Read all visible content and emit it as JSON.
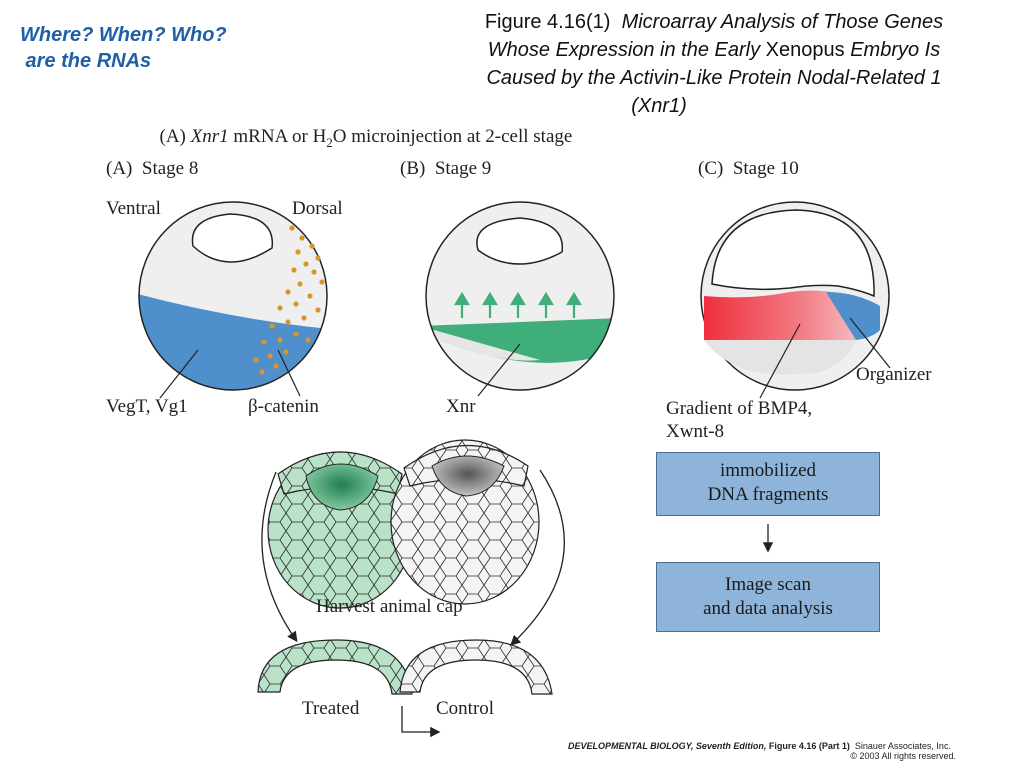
{
  "slide": {
    "heading_lines": [
      "Where? When? Who?",
      " are the RNAs"
    ],
    "figure_number": "Figure 4.16(1)",
    "figure_title_lines": [
      "Microarray Analysis of Those Genes",
      "Whose Expression in the Early ",
      "Xenopus",
      " Embryo Is",
      "Caused by the Activin-Like Protein Nodal-Related 1",
      "(Xnr1)"
    ]
  },
  "panel_top": {
    "label_prefix": "(A) ",
    "label_gene": "Xnr1",
    "label_rest": " mRNA or H",
    "label_sub": "2",
    "label_end": "O microinjection at 2-cell stage"
  },
  "stages": [
    {
      "label": "(A)  Stage 8",
      "labels": [
        "Ventral",
        "Dorsal",
        "VegT, Vg1",
        "β-catenin"
      ]
    },
    {
      "label": "(B)  Stage 9",
      "labels": [
        "Xnr"
      ]
    },
    {
      "label": "(C)  Stage 10",
      "labels": [
        "Organizer",
        "Gradient of BMP4,",
        "Xwnt-8"
      ]
    }
  ],
  "harvest": {
    "label": "Harvest animal cap",
    "treated": "Treated",
    "control": "Control"
  },
  "flow_boxes": [
    {
      "lines": [
        "immobilized",
        "DNA fragments"
      ]
    },
    {
      "lines": [
        "Image scan",
        "and data analysis"
      ]
    }
  ],
  "credit": {
    "book": "DEVELOPMENTAL BIOLOGY, Seventh Edition,",
    "figure": " Figure 4.16 (Part 1)",
    "publisher": "  Sinauer Associates, Inc.",
    "rights": "© 2003 All rights reserved."
  },
  "colors": {
    "heading": "#1f5fa8",
    "vegetal_blue": "#4f8fcc",
    "beta_catenin_dots": "#d9962a",
    "xnr_green": "#3fae7a",
    "bmp_red": "#ee3b48",
    "organizer_blue": "#4f8fcc",
    "box_fill": "#8fb4d9"
  }
}
